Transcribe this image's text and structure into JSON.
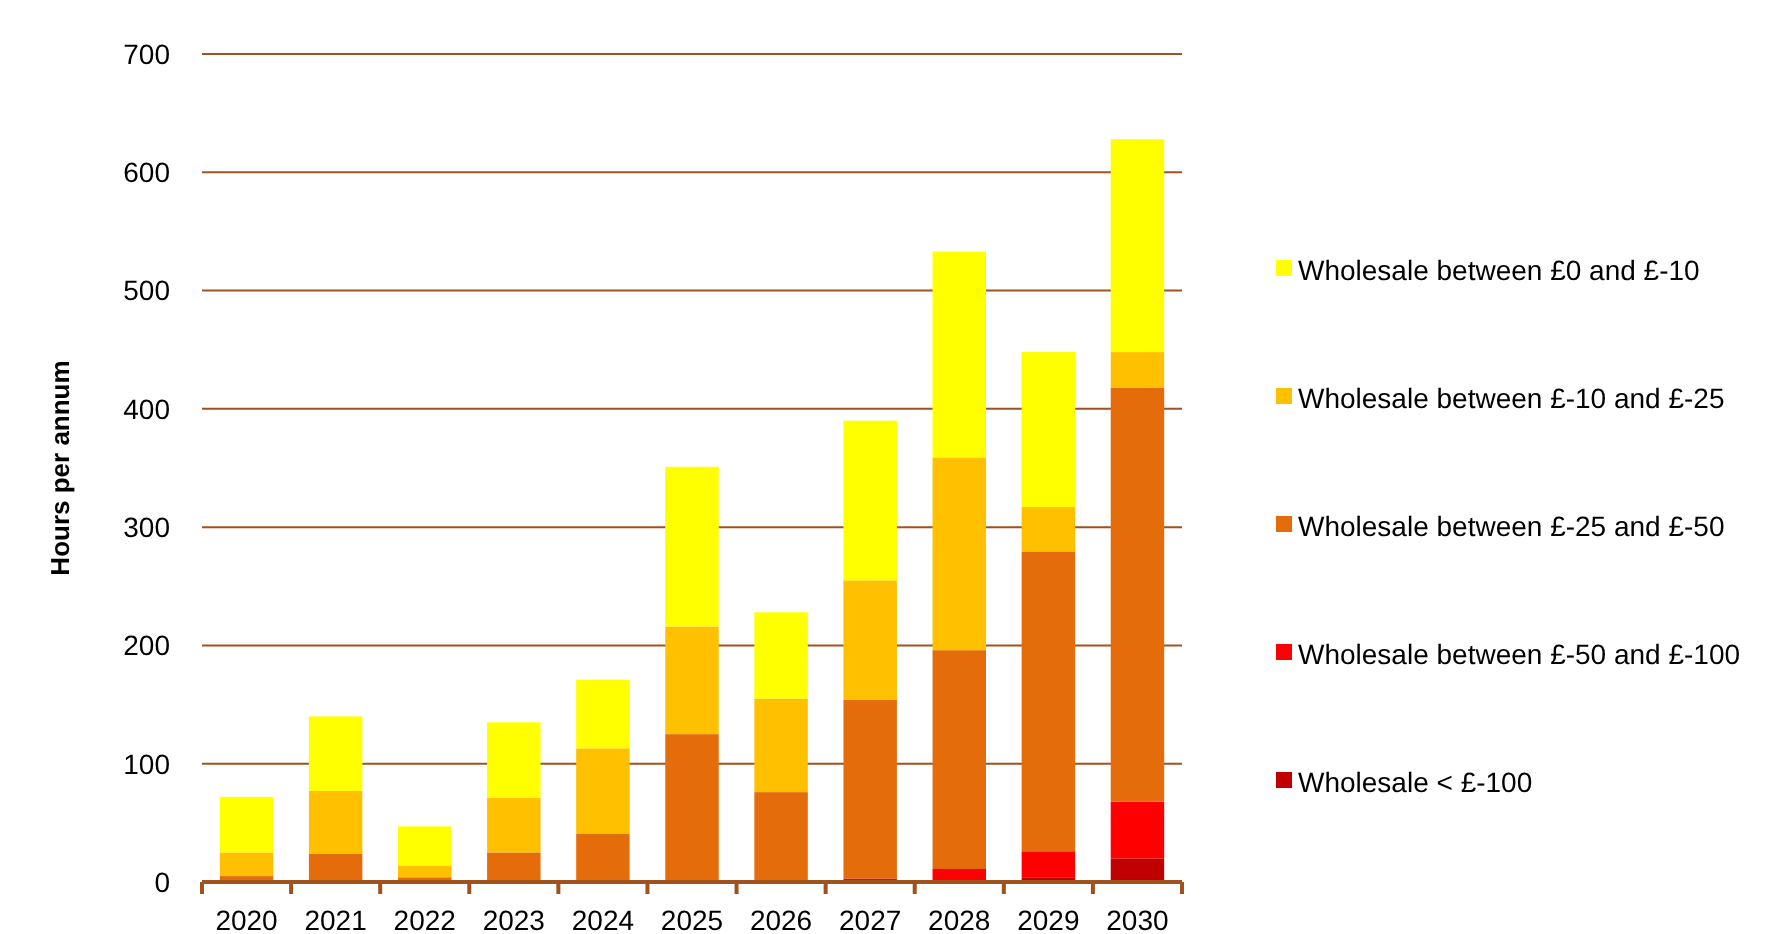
{
  "chart_data": {
    "type": "bar",
    "stacked": true,
    "ylabel": "Hours per annum",
    "categories": [
      "2020",
      "2021",
      "2022",
      "2023",
      "2024",
      "2025",
      "2026",
      "2027",
      "2028",
      "2029",
      "2030"
    ],
    "series": [
      {
        "name": "Wholesale < £-100",
        "color": "#c00000",
        "values": [
          0,
          0,
          0,
          0,
          0,
          0,
          0,
          0,
          0,
          4,
          20
        ]
      },
      {
        "name": "Wholesale between £-50 and £-100",
        "color": "#ff0000",
        "values": [
          0,
          0,
          0,
          0,
          0,
          0,
          0,
          3,
          11,
          22,
          48
        ]
      },
      {
        "name": "Wholesale between £-25 and £-50",
        "color": "#e46c0a",
        "values": [
          5,
          24,
          4,
          25,
          41,
          125,
          76,
          151,
          185,
          253,
          350
        ]
      },
      {
        "name": "Wholesale between £-10 and £-25",
        "color": "#ffc000",
        "values": [
          20,
          53,
          10,
          46,
          72,
          91,
          79,
          101,
          163,
          38,
          30
        ]
      },
      {
        "name": "Wholesale between £0 and £-10",
        "color": "#ffff00",
        "values": [
          47,
          63,
          33,
          64,
          58,
          135,
          73,
          135,
          174,
          131,
          180
        ]
      }
    ],
    "ylim": [
      0,
      700
    ],
    "yticks": [
      0,
      100,
      200,
      300,
      400,
      500,
      600,
      700
    ],
    "grid": "y",
    "legend": "right"
  }
}
